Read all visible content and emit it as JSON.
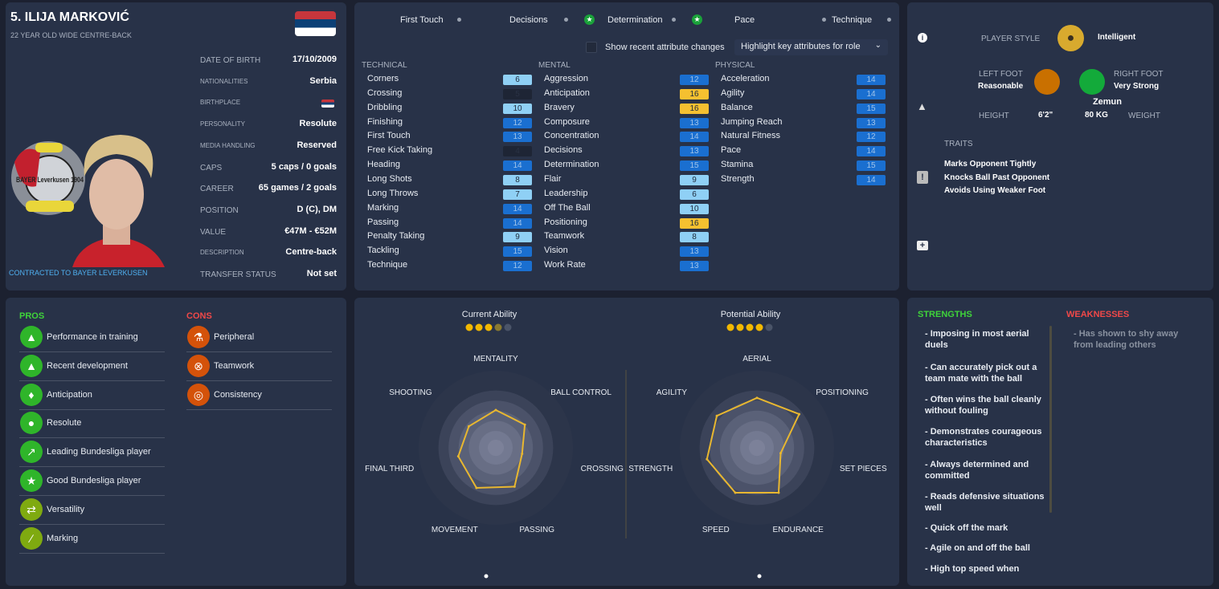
{
  "player": {
    "name": "5. ILIJA MARKOVIĆ",
    "subtitle": "22 YEAR OLD WIDE CENTRE-BACK",
    "contract": "CONTRACTED TO BAYER LEVERKUSEN",
    "crest_text": "BAYER Leverkusen 1904",
    "info": [
      {
        "label": "DATE OF BIRTH",
        "value": "17/10/2009"
      },
      {
        "label": "NATIONALITIES",
        "value": "Serbia"
      },
      {
        "label": "BIRTHPLACE",
        "value": "Zemun"
      },
      {
        "label": "PERSONALITY",
        "value": "Resolute"
      },
      {
        "label": "MEDIA HANDLING",
        "value": "Reserved"
      },
      {
        "label": "CAPS",
        "value": "5 caps / 0 goals"
      },
      {
        "label": "CAREER",
        "value": "65  games /    2  goals"
      },
      {
        "label": "POSITION",
        "value": "D (C), DM"
      },
      {
        "label": "VALUE",
        "value": "€47M - €52M"
      },
      {
        "label": "DESCRIPTION",
        "value": "Centre-back"
      },
      {
        "label": "TRANSFER STATUS",
        "value": "Not set"
      }
    ]
  },
  "key_attributes": [
    "First Touch",
    "Decisions",
    "Determination",
    "Pace",
    "Technique"
  ],
  "controls": {
    "show_changes": "Show recent attribute changes",
    "highlight": "Highlight key attributes for role"
  },
  "attributes": {
    "technical": {
      "title": "TECHNICAL",
      "items": [
        [
          "Corners",
          6
        ],
        [
          "Crossing",
          5
        ],
        [
          "Dribbling",
          10
        ],
        [
          "Finishing",
          12
        ],
        [
          "First Touch",
          13
        ],
        [
          "Free Kick Taking",
          4
        ],
        [
          "Heading",
          14
        ],
        [
          "Long Shots",
          8
        ],
        [
          "Long Throws",
          7
        ],
        [
          "Marking",
          14
        ],
        [
          "Passing",
          14
        ],
        [
          "Penalty Taking",
          9
        ],
        [
          "Tackling",
          15
        ],
        [
          "Technique",
          12
        ]
      ]
    },
    "mental": {
      "title": "MENTAL",
      "items": [
        [
          "Aggression",
          12
        ],
        [
          "Anticipation",
          16
        ],
        [
          "Bravery",
          16
        ],
        [
          "Composure",
          13
        ],
        [
          "Concentration",
          14
        ],
        [
          "Decisions",
          13
        ],
        [
          "Determination",
          15
        ],
        [
          "Flair",
          9
        ],
        [
          "Leadership",
          6
        ],
        [
          "Off The Ball",
          10
        ],
        [
          "Positioning",
          16
        ],
        [
          "Teamwork",
          8
        ],
        [
          "Vision",
          13
        ],
        [
          "Work Rate",
          13
        ]
      ]
    },
    "physical": {
      "title": "PHYSICAL",
      "items": [
        [
          "Acceleration",
          14
        ],
        [
          "Agility",
          14
        ],
        [
          "Balance",
          15
        ],
        [
          "Jumping Reach",
          13
        ],
        [
          "Natural Fitness",
          12
        ],
        [
          "Pace",
          14
        ],
        [
          "Stamina",
          15
        ],
        [
          "Strength",
          14
        ]
      ]
    }
  },
  "profile": {
    "style_label": "PLAYER STYLE",
    "style": "Intelligent",
    "left_foot_label": "LEFT FOOT",
    "left_foot": "Reasonable",
    "right_foot_label": "RIGHT FOOT",
    "right_foot": "Very Strong",
    "height_label": "HEIGHT",
    "height": "6'2\"",
    "weight": "80 KG",
    "weight_label": "WEIGHT",
    "traits_label": "TRAITS",
    "traits": [
      "Marks Opponent Tightly",
      "Knocks Ball Past Opponent",
      "Avoids Using Weaker Foot"
    ]
  },
  "pros": {
    "title": "PROS",
    "items": [
      "Performance in training",
      "Recent development",
      "Anticipation",
      "Resolute",
      "Leading Bundesliga player",
      "Good Bundesliga player",
      "Versatility",
      "Marking"
    ]
  },
  "cons": {
    "title": "CONS",
    "items": [
      "Peripheral",
      "Teamwork",
      "Consistency"
    ]
  },
  "colors": {
    "green": "#2fb52a",
    "olive": "#7faa10",
    "orange": "#d4520a",
    "gold": "#e8b730",
    "strengths": "#3fd43a",
    "weaknesses": "#f04848"
  },
  "chart_data": [
    {
      "type": "radar",
      "title": "Current Ability",
      "stars": 3.5,
      "max_stars": 5,
      "axes": [
        "MENTALITY",
        "BALL CONTROL",
        "CROSSING",
        "PASSING",
        "MOVEMENT",
        "FINAL THIRD",
        "SHOOTING"
      ],
      "values": [
        56,
        55,
        40,
        64,
        66,
        57,
        51
      ],
      "range": [
        0,
        100
      ]
    },
    {
      "type": "radar",
      "title": "Potential Ability",
      "stars": 4,
      "max_stars": 5,
      "axes": [
        "AERIAL",
        "POSITIONING",
        "SET PIECES",
        "ENDURANCE",
        "SPEED",
        "STRENGTH",
        "AGILITY"
      ],
      "values": [
        74,
        80,
        36,
        74,
        74,
        76,
        76
      ],
      "range": [
        0,
        100
      ]
    }
  ],
  "strengths": {
    "title": "STRENGTHS",
    "items": [
      "- Imposing in most aerial duels",
      "- Can accurately pick out a team mate with the ball",
      "- Often wins the ball cleanly without fouling",
      "- Demonstrates courageous characteristics",
      "- Always determined and committed",
      "- Reads defensive situations well",
      "- Quick off the mark",
      "- Agile on and off the ball",
      "- High top speed when"
    ]
  },
  "weaknesses": {
    "title": "WEAKNESSES",
    "items": [
      "- Has shown to shy away from leading others"
    ]
  }
}
